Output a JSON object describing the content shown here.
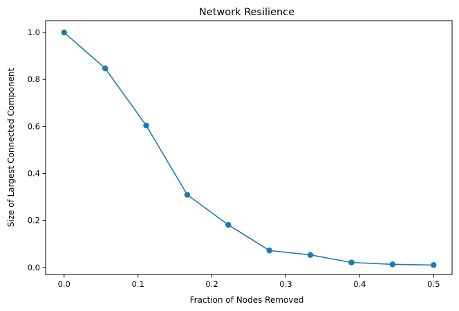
{
  "chart_data": {
    "type": "line",
    "title": "Network Resilience",
    "xlabel": "Fraction of Nodes Removed",
    "ylabel": "Size of Largest Connected Component",
    "xlim": [
      -0.025,
      0.525
    ],
    "ylim": [
      -0.03,
      1.05
    ],
    "x_ticks": [
      "0.0",
      "0.1",
      "0.2",
      "0.3",
      "0.4",
      "0.5"
    ],
    "y_ticks": [
      "0.0",
      "0.2",
      "0.4",
      "0.6",
      "0.8",
      "1.0"
    ],
    "grid": false,
    "series": [
      {
        "color": "#1f77b4",
        "marker": "circle",
        "x": [
          0.0,
          0.0556,
          0.1111,
          0.1667,
          0.2222,
          0.2778,
          0.3333,
          0.3889,
          0.4444,
          0.5
        ],
        "y": [
          1.0,
          0.847,
          0.604,
          0.309,
          0.181,
          0.072,
          0.053,
          0.021,
          0.013,
          0.01
        ]
      }
    ]
  }
}
